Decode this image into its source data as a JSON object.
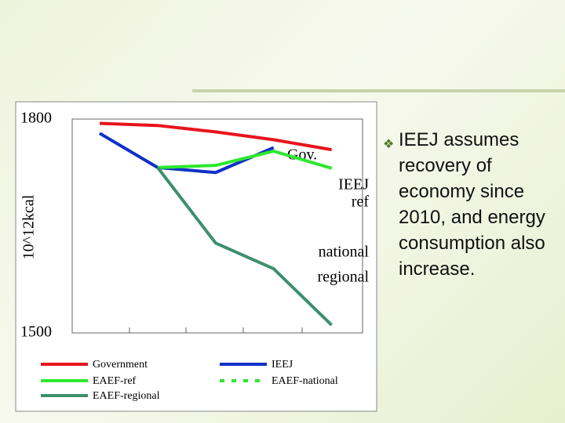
{
  "chart_data": {
    "type": "line",
    "y_label": "10^12kcal",
    "categories": [
      null,
      null,
      null,
      null,
      null
    ],
    "ylim": [
      1500,
      1800
    ],
    "yticks": [
      1500,
      1800
    ],
    "grid": false,
    "series": [
      {
        "name": "Government",
        "color": "#e8141c",
        "values": [
          1794,
          1791,
          1782,
          1771,
          1757
        ]
      },
      {
        "name": "IEEJ",
        "color": "#1030c8",
        "values": [
          1780,
          1732,
          1725,
          1760,
          null
        ]
      },
      {
        "name": "EAEF-ref",
        "color": "#2ee82e",
        "values": [
          null,
          1732,
          1735,
          1755,
          1731
        ]
      },
      {
        "name": "EAEF-national",
        "color": "#2ee82e",
        "dashed": true,
        "values": [
          null,
          1732,
          1735,
          1755,
          1731
        ]
      },
      {
        "name": "EAEF-regional",
        "color": "#3d8f6c",
        "values": [
          null,
          1732,
          1626,
          1590,
          1511
        ]
      }
    ],
    "annotations": [
      "Gov.",
      "IEEJ",
      "ref",
      "national",
      "regional"
    ]
  },
  "bullet": "IEEJ assumes recovery of economy since 2010, and energy consumption also increase."
}
